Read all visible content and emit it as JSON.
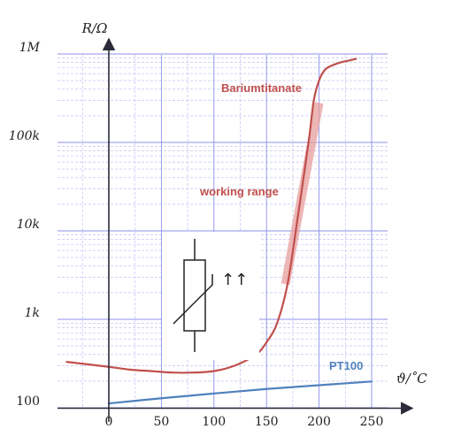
{
  "chart_data": {
    "type": "line",
    "xlabel": "ϑ/˚C",
    "ylabel": "R/Ω",
    "xlim": [
      -45,
      265
    ],
    "ylim": [
      100,
      1400000
    ],
    "y_scale": "log",
    "x_ticks": [
      0,
      50,
      100,
      150,
      200,
      250
    ],
    "x_tick_labels": [
      "0",
      "50",
      "100",
      "150",
      "200",
      "250"
    ],
    "y_ticks": [
      100,
      1000,
      10000,
      100000,
      1000000
    ],
    "y_tick_labels": [
      "100",
      "1k",
      "10k",
      "100k",
      "1M"
    ],
    "grid": true,
    "series": [
      {
        "name": "Bariumtitanate",
        "color": "#c0504d",
        "x": [
          -40,
          -20,
          0,
          20,
          40,
          60,
          80,
          100,
          120,
          140,
          150,
          160,
          170,
          180,
          190,
          195,
          200,
          205,
          210,
          220,
          230,
          235
        ],
        "y": [
          330,
          310,
          290,
          270,
          260,
          250,
          250,
          260,
          300,
          400,
          550,
          900,
          2500,
          15000,
          100000,
          300000,
          500000,
          650000,
          720000,
          800000,
          850000,
          880000
        ]
      },
      {
        "name": "PT100",
        "color": "#4f81bd",
        "x": [
          0,
          50,
          100,
          150,
          200,
          250
        ],
        "y": [
          112,
          128,
          145,
          163,
          180,
          198
        ]
      }
    ],
    "annotations": [
      {
        "text": "working range",
        "color": "#c0504d",
        "highlight_color": "#e8a09e",
        "x_range": [
          168,
          200
        ],
        "y_range": [
          2500,
          280000
        ]
      }
    ],
    "symbol": "ptc-thermistor-icon",
    "symbol_label": "↑↑"
  }
}
